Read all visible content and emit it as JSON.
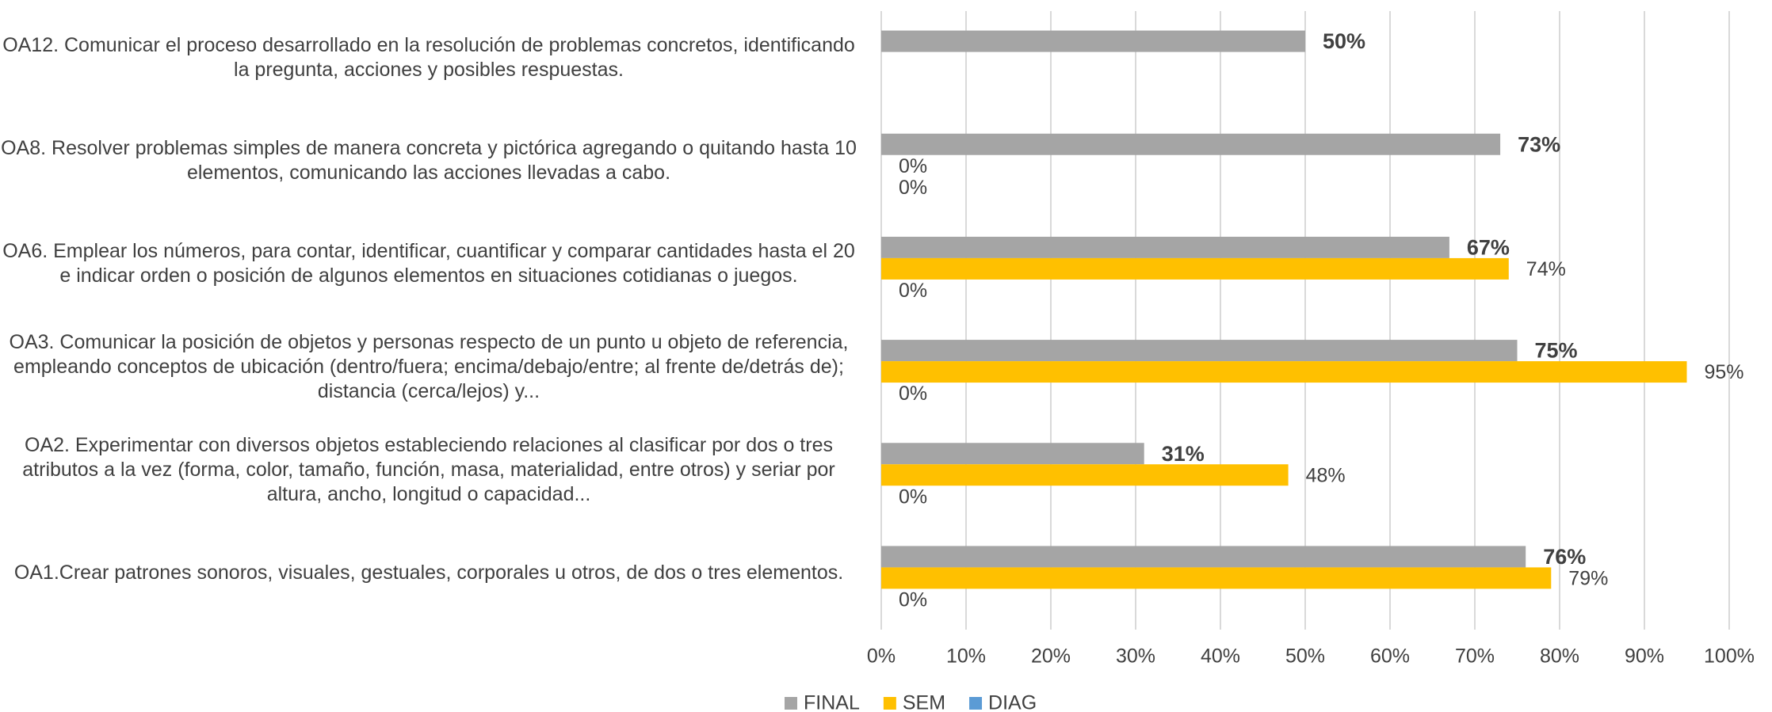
{
  "chart_data": {
    "type": "bar",
    "orientation": "horizontal",
    "categories": [
      "OA12. Comunicar el proceso desarrollado en la resolución de problemas concretos, identificando la pregunta, acciones y posibles respuestas.",
      "OA8. Resolver problemas simples de manera concreta y pictórica agregando o quitando hasta 10 elementos, comunicando las acciones llevadas a cabo.",
      "OA6. Emplear los números, para contar, identificar, cuantificar y comparar cantidades hasta el 20 e indicar orden o posición de algunos elementos en situaciones cotidianas o juegos.",
      "OA3. Comunicar la posición de objetos y personas respecto de un punto u objeto de referencia, empleando conceptos de ubicación (dentro/fuera; encima/debajo/entre; al frente de/detrás de); distancia (cerca/lejos) y...",
      "OA2. Experimentar con diversos objetos estableciendo relaciones al clasificar por dos o tres atributos a la vez (forma, color, tamaño, función, masa, materialidad, entre otros) y seriar por altura, ancho, longitud o capacidad...",
      "OA1.Crear patrones sonoros, visuales, gestuales, corporales u otros, de dos o tres elementos."
    ],
    "series": [
      {
        "name": "FINAL",
        "color": "#a5a5a5",
        "values": [
          50,
          73,
          67,
          75,
          31,
          76
        ],
        "value_labels": [
          "50%",
          "73%",
          "67%",
          "75%",
          "31%",
          "76%"
        ]
      },
      {
        "name": "SEM",
        "color": "#ffc000",
        "values": [
          null,
          0,
          74,
          95,
          48,
          79
        ],
        "value_labels": [
          null,
          "0%",
          "74%",
          "95%",
          "48%",
          "79%"
        ]
      },
      {
        "name": "DIAG",
        "color": "#5b9bd5",
        "values": [
          null,
          0,
          0,
          0,
          0,
          0
        ],
        "value_labels": [
          null,
          "0%",
          "0%",
          "0%",
          "0%",
          "0%"
        ]
      }
    ],
    "xlim": [
      0,
      100
    ],
    "xticks": [
      {
        "value": 0,
        "label": "0%"
      },
      {
        "value": 10,
        "label": "10%"
      },
      {
        "value": 20,
        "label": "20%"
      },
      {
        "value": 30,
        "label": "30%"
      },
      {
        "value": 40,
        "label": "40%"
      },
      {
        "value": 50,
        "label": "50%"
      },
      {
        "value": 60,
        "label": "60%"
      },
      {
        "value": 70,
        "label": "70%"
      },
      {
        "value": 80,
        "label": "80%"
      },
      {
        "value": 90,
        "label": "90%"
      },
      {
        "value": 100,
        "label": "100%"
      }
    ],
    "grid": true,
    "legend": "bottom"
  }
}
